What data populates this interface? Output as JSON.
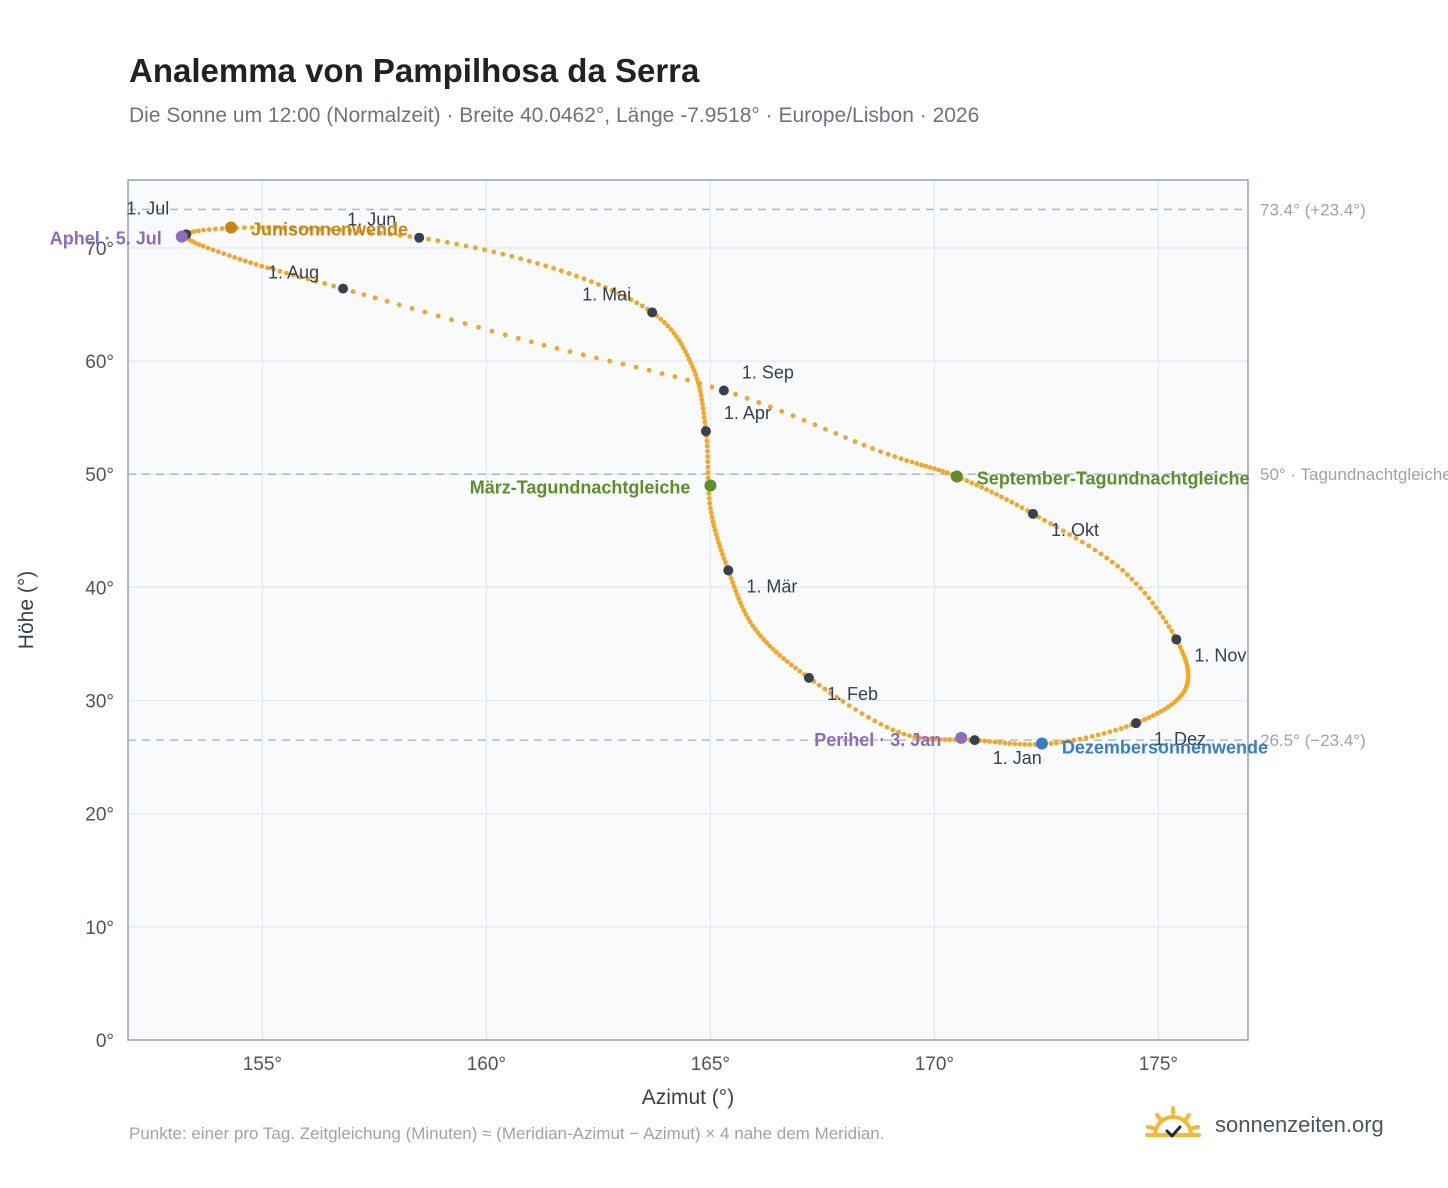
{
  "title": "Analemma von Pampilhosa da Serra",
  "subtitle": "Die Sonne um 12:00 (Normalzeit) · Breite 40.0462°, Länge -7.9518° · Europe/Lisbon · 2026",
  "footnote": "Punkte: einer pro Tag. Zeitgleichung (Minuten) ≈ (Meridian-Azimut − Azimut) × 4 nahe dem Meridian.",
  "brand": {
    "name": "sonnenzeiten.org",
    "icon": "sun-check-icon"
  },
  "colors": {
    "curve": "#f5a623",
    "month": "#374151",
    "solstice_june": "#c8860d",
    "solstice_dec": "#3b7dc4",
    "equinox": "#5a8f29",
    "apsis": "#8e6bbf"
  },
  "chart_data": {
    "type": "scatter",
    "xlabel": "Azimut (°)",
    "ylabel": "Höhe (°)",
    "xlim": [
      152,
      177
    ],
    "ylim": [
      0,
      76
    ],
    "xticks": [
      155,
      160,
      165,
      170,
      175
    ],
    "yticks": [
      0,
      10,
      20,
      30,
      40,
      50,
      60,
      70
    ],
    "xtick_labels": [
      "155°",
      "160°",
      "165°",
      "170°",
      "175°"
    ],
    "ytick_labels": [
      "0°",
      "10°",
      "20°",
      "30°",
      "40°",
      "50°",
      "60°",
      "70°"
    ],
    "grid": true,
    "reference_lines": [
      {
        "y": 73.4,
        "label": "73.4° (+23.4°)"
      },
      {
        "y": 50.0,
        "label": "50° · Tagundnachtgleiche"
      },
      {
        "y": 26.5,
        "label": "26.5° (−23.4°)"
      }
    ],
    "months": [
      {
        "label": "1. Jan",
        "x": 170.9,
        "y": 26.5
      },
      {
        "label": "1. Feb",
        "x": 167.2,
        "y": 32.0
      },
      {
        "label": "1. Mär",
        "x": 165.4,
        "y": 41.5
      },
      {
        "label": "1. Apr",
        "x": 164.9,
        "y": 53.8
      },
      {
        "label": "1. Mai",
        "x": 163.7,
        "y": 64.3
      },
      {
        "label": "1. Jun",
        "x": 158.5,
        "y": 70.9
      },
      {
        "label": "1. Jul",
        "x": 153.3,
        "y": 71.2
      },
      {
        "label": "1. Aug",
        "x": 156.8,
        "y": 66.4
      },
      {
        "label": "1. Sep",
        "x": 165.3,
        "y": 57.4
      },
      {
        "label": "1. Okt",
        "x": 172.2,
        "y": 46.5
      },
      {
        "label": "1. Nov",
        "x": 175.4,
        "y": 35.4
      },
      {
        "label": "1. Dez",
        "x": 174.5,
        "y": 28.0
      }
    ],
    "events": [
      {
        "label": "Junisonnenwende",
        "x": 154.3,
        "y": 71.8,
        "kind": "solstice_june"
      },
      {
        "label": "Dezembersonnenwende",
        "x": 172.4,
        "y": 26.2,
        "kind": "solstice_dec"
      },
      {
        "label": "März-Tagundnachtgleiche",
        "x": 165.0,
        "y": 49.0,
        "kind": "equinox"
      },
      {
        "label": "September-Tagundnachtgleiche",
        "x": 170.5,
        "y": 49.8,
        "kind": "equinox"
      },
      {
        "label": "Aphel · 5. Jul",
        "x": 153.2,
        "y": 71.0,
        "kind": "apsis"
      },
      {
        "label": "Perihel · 3. Jan",
        "x": 170.6,
        "y": 26.7,
        "kind": "apsis"
      }
    ],
    "curve": {
      "description": "one point per day, 2026",
      "points": [
        [
          170.9,
          26.5
        ],
        [
          169.2,
          27.2
        ],
        [
          167.2,
          32.0
        ],
        [
          166.0,
          36.3
        ],
        [
          165.4,
          41.5
        ],
        [
          165.0,
          47.0
        ],
        [
          164.9,
          53.8
        ],
        [
          164.6,
          59.5
        ],
        [
          163.7,
          64.3
        ],
        [
          161.5,
          68.2
        ],
        [
          158.5,
          70.9
        ],
        [
          155.3,
          71.8
        ],
        [
          153.3,
          71.2
        ],
        [
          154.5,
          69.0
        ],
        [
          156.8,
          66.4
        ],
        [
          161.0,
          61.7
        ],
        [
          165.3,
          57.4
        ],
        [
          168.8,
          52.0
        ],
        [
          170.5,
          49.8
        ],
        [
          172.2,
          46.5
        ],
        [
          174.2,
          41.5
        ],
        [
          175.4,
          35.4
        ],
        [
          175.6,
          31.0
        ],
        [
          174.5,
          28.0
        ],
        [
          172.6,
          26.2
        ],
        [
          170.9,
          26.5
        ]
      ]
    }
  }
}
